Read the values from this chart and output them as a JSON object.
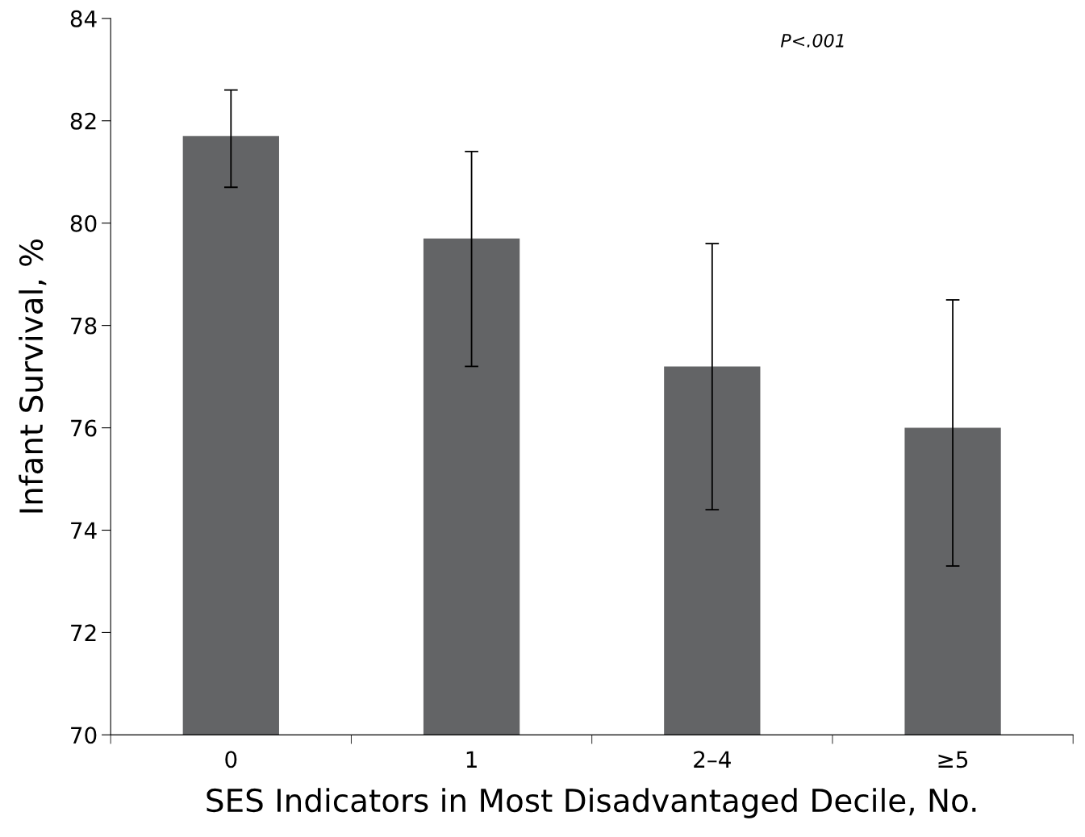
{
  "chart_data": {
    "type": "bar",
    "xlabel": "SES Indicators in Most Disadvantaged Decile, No.",
    "ylabel": "Infant Survival, %",
    "categories": [
      "0",
      "1",
      "2–4",
      "≥5"
    ],
    "values": [
      81.7,
      79.7,
      77.2,
      76.0
    ],
    "errors": [
      [
        80.7,
        82.6
      ],
      [
        77.2,
        81.4
      ],
      [
        74.4,
        79.6
      ],
      [
        73.3,
        78.5
      ]
    ],
    "color": "#636466",
    "ylim": [
      70,
      84
    ],
    "yticks": [
      70,
      72,
      74,
      76,
      78,
      80,
      82,
      84
    ],
    "grid": false,
    "legend": false,
    "annotations": [
      "P<.001"
    ]
  }
}
